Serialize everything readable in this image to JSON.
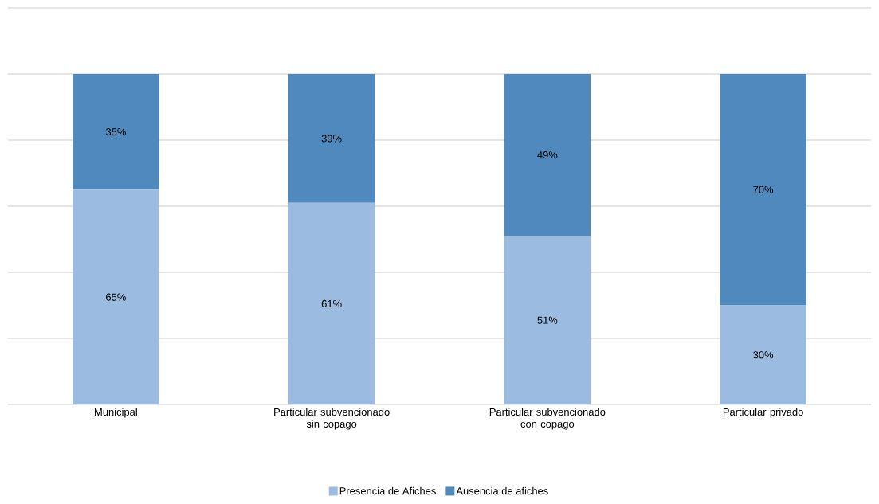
{
  "chart_data": {
    "type": "bar",
    "stacked": true,
    "categories": [
      "Municipal",
      "Particular subvencionado sin copago",
      "Particular subvencionado con copago",
      "Particular privado"
    ],
    "series": [
      {
        "name": "Presencia de Afiches",
        "color": "#9bbbe0",
        "values": [
          65,
          61,
          51,
          30
        ],
        "value_labels": [
          "65%",
          "61%",
          "51%",
          "30%"
        ]
      },
      {
        "name": "Ausencia de afiches",
        "color": "#4f89bd",
        "values": [
          35,
          39,
          49,
          70
        ],
        "value_labels": [
          "35%",
          "39%",
          "49%",
          "70%"
        ]
      }
    ],
    "ylim": [
      0,
      120
    ],
    "yticks": [
      {
        "value": 0,
        "label": null
      },
      {
        "value": 20,
        "label": null
      },
      {
        "value": 40,
        "label": null
      },
      {
        "value": 60,
        "label": null
      },
      {
        "value": 80,
        "label": null
      },
      {
        "value": 100,
        "label": null
      },
      {
        "value": 120,
        "label": null
      }
    ],
    "grid": "y",
    "legend": "bottom",
    "tick_labels": "x"
  }
}
